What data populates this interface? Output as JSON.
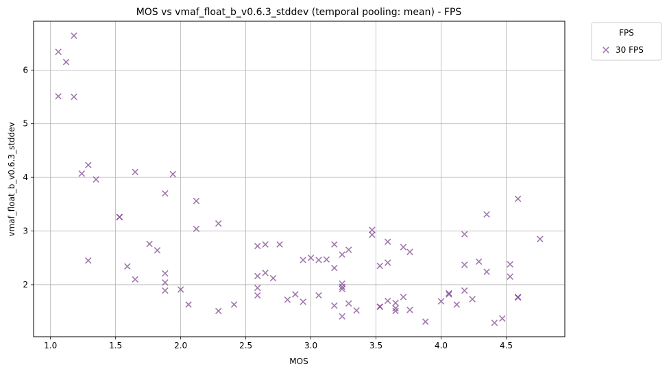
{
  "chart_data": {
    "type": "scatter",
    "title": "MOS vs vmaf_float_b_v0.6.3_stddev (temporal pooling: mean) - FPS",
    "xlabel": "MOS",
    "ylabel": "vmaf_float_b_v0.6.3_stddev",
    "xlim": [
      0.87,
      4.95
    ],
    "ylim": [
      1.03,
      6.91
    ],
    "xticks": [
      1.0,
      1.5,
      2.0,
      2.5,
      3.0,
      3.5,
      4.0,
      4.5
    ],
    "xtick_labels": [
      "1.0",
      "1.5",
      "2.0",
      "2.5",
      "3.0",
      "3.5",
      "4.0",
      "4.5"
    ],
    "yticks": [
      2,
      3,
      4,
      5,
      6
    ],
    "ytick_labels": [
      "2",
      "3",
      "4",
      "5",
      "6"
    ],
    "grid": true,
    "marker": "x",
    "color": "#7b3f8c",
    "legend": {
      "title": "FPS",
      "placement": "outside top-right",
      "entries": [
        "30 FPS"
      ]
    },
    "series": [
      {
        "name": "30 FPS",
        "points": [
          [
            1.06,
            6.34
          ],
          [
            1.12,
            6.15
          ],
          [
            1.18,
            6.64
          ],
          [
            1.06,
            5.51
          ],
          [
            1.18,
            5.5
          ],
          [
            1.29,
            4.23
          ],
          [
            1.24,
            4.07
          ],
          [
            1.35,
            3.96
          ],
          [
            1.29,
            2.45
          ],
          [
            1.53,
            3.26
          ],
          [
            1.53,
            3.26
          ],
          [
            1.59,
            2.34
          ],
          [
            1.65,
            4.1
          ],
          [
            1.65,
            2.1
          ],
          [
            1.76,
            2.76
          ],
          [
            1.82,
            2.64
          ],
          [
            1.88,
            3.7
          ],
          [
            1.88,
            2.21
          ],
          [
            1.88,
            2.04
          ],
          [
            1.88,
            1.89
          ],
          [
            1.94,
            4.06
          ],
          [
            2.0,
            1.91
          ],
          [
            2.06,
            1.63
          ],
          [
            2.12,
            3.56
          ],
          [
            2.12,
            3.04
          ],
          [
            2.29,
            3.14
          ],
          [
            2.29,
            1.51
          ],
          [
            2.41,
            1.63
          ],
          [
            2.59,
            2.72
          ],
          [
            2.59,
            2.16
          ],
          [
            2.59,
            1.94
          ],
          [
            2.59,
            1.8
          ],
          [
            2.65,
            2.75
          ],
          [
            2.65,
            2.22
          ],
          [
            2.71,
            2.12
          ],
          [
            2.76,
            2.75
          ],
          [
            2.82,
            1.72
          ],
          [
            2.88,
            1.82
          ],
          [
            2.94,
            2.46
          ],
          [
            2.94,
            1.68
          ],
          [
            3.0,
            2.5
          ],
          [
            3.06,
            2.46
          ],
          [
            3.06,
            1.8
          ],
          [
            3.12,
            2.47
          ],
          [
            3.18,
            2.75
          ],
          [
            3.18,
            2.31
          ],
          [
            3.18,
            1.61
          ],
          [
            3.24,
            2.56
          ],
          [
            3.24,
            2.02
          ],
          [
            3.24,
            1.96
          ],
          [
            3.24,
            1.92
          ],
          [
            3.24,
            1.41
          ],
          [
            3.29,
            2.65
          ],
          [
            3.29,
            1.65
          ],
          [
            3.35,
            1.52
          ],
          [
            3.47,
            3.02
          ],
          [
            3.47,
            2.93
          ],
          [
            3.53,
            2.35
          ],
          [
            3.53,
            1.59
          ],
          [
            3.53,
            1.59
          ],
          [
            3.59,
            2.8
          ],
          [
            3.59,
            2.41
          ],
          [
            3.59,
            1.7
          ],
          [
            3.65,
            1.66
          ],
          [
            3.65,
            1.56
          ],
          [
            3.65,
            1.51
          ],
          [
            3.71,
            2.7
          ],
          [
            3.71,
            1.77
          ],
          [
            3.76,
            2.61
          ],
          [
            3.76,
            1.53
          ],
          [
            3.88,
            1.31
          ],
          [
            4.0,
            1.69
          ],
          [
            4.06,
            1.84
          ],
          [
            4.06,
            1.82
          ],
          [
            4.12,
            1.63
          ],
          [
            4.18,
            2.94
          ],
          [
            4.18,
            2.37
          ],
          [
            4.18,
            1.89
          ],
          [
            4.24,
            1.73
          ],
          [
            4.29,
            2.43
          ],
          [
            4.35,
            3.31
          ],
          [
            4.35,
            2.24
          ],
          [
            4.41,
            1.29
          ],
          [
            4.47,
            1.37
          ],
          [
            4.53,
            2.38
          ],
          [
            4.53,
            2.15
          ],
          [
            4.59,
            3.6
          ],
          [
            4.59,
            1.77
          ],
          [
            4.59,
            1.76
          ],
          [
            4.76,
            2.85
          ]
        ]
      }
    ]
  }
}
